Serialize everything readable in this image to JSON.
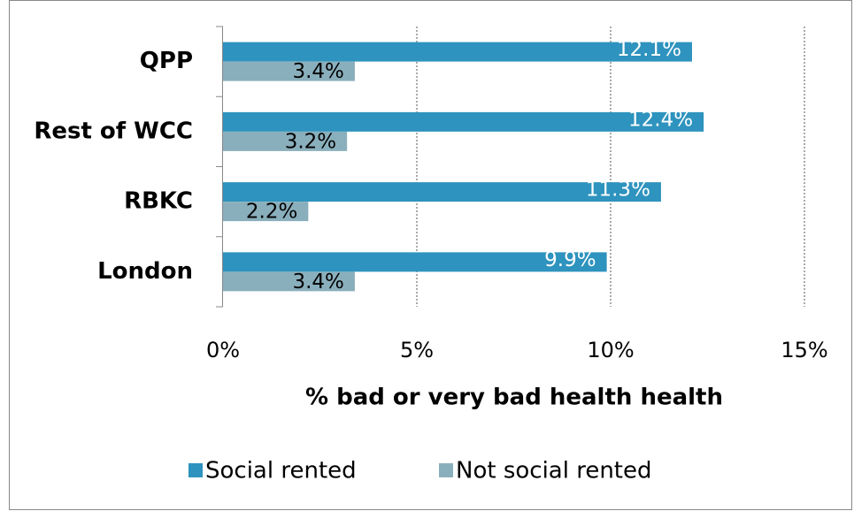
{
  "chart_data": {
    "type": "bar",
    "orientation": "horizontal",
    "x_axis_label": "% bad or very bad health health",
    "categories": [
      "QPP",
      "Rest of WCC",
      "RBKC",
      "London"
    ],
    "series": [
      {
        "name": "Social rented",
        "color": "#2e93be",
        "values": [
          12.1,
          12.4,
          11.3,
          9.9
        ],
        "value_labels": [
          "12.1%",
          "12.4%",
          "11.3%",
          "9.9%"
        ]
      },
      {
        "name": "Not social rented",
        "color": "#8aafbc",
        "values": [
          3.4,
          3.2,
          2.2,
          3.4
        ],
        "value_labels": [
          "3.4%",
          "3.2%",
          "2.2%",
          "3.4%"
        ]
      }
    ],
    "xlim": [
      0,
      15
    ],
    "xticks": [
      {
        "value": 0,
        "label": "0%"
      },
      {
        "value": 5,
        "label": "5%"
      },
      {
        "value": 10,
        "label": "10%"
      },
      {
        "value": 15,
        "label": "15%"
      }
    ],
    "grid": true,
    "legend": "bottom"
  }
}
